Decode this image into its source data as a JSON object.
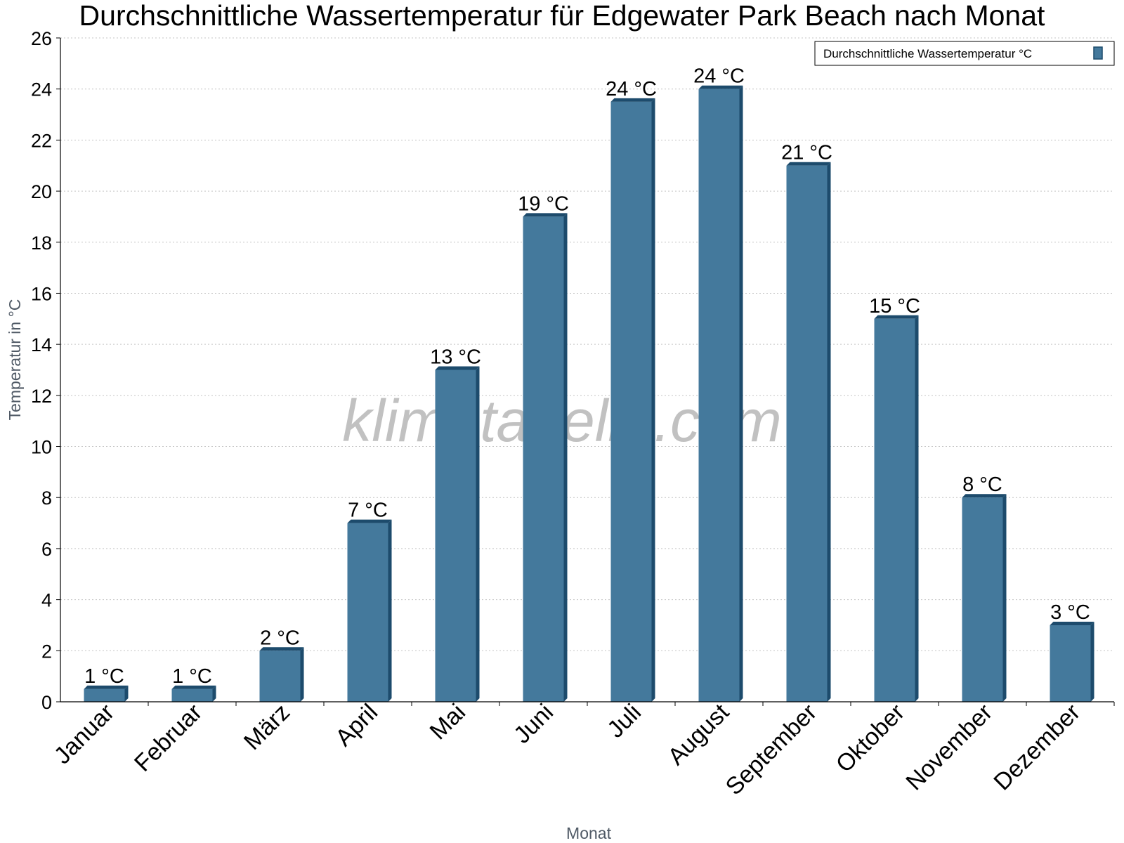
{
  "chart_data": {
    "type": "bar",
    "title": "Durchschnittliche Wassertemperatur für Edgewater Park Beach nach Monat",
    "xlabel": "Monat",
    "ylabel": "Temperatur in °C",
    "categories": [
      "Januar",
      "Februar",
      "März",
      "April",
      "Mai",
      "Juni",
      "Juli",
      "August",
      "September",
      "Oktober",
      "November",
      "Dezember"
    ],
    "series": [
      {
        "name": "Durchschnittliche Wassertemperatur °C",
        "values": [
          0.5,
          0.5,
          2,
          7,
          13,
          19,
          23.5,
          24,
          21,
          15,
          8,
          3
        ],
        "labels": [
          "1 °C",
          "1 °C",
          "2 °C",
          "7 °C",
          "13 °C",
          "19 °C",
          "24 °C",
          "24 °C",
          "21 °C",
          "15 °C",
          "8 °C",
          "3 °C"
        ]
      }
    ],
    "ylim": [
      0,
      26
    ],
    "yticks": [
      0,
      2,
      4,
      6,
      8,
      10,
      12,
      14,
      16,
      18,
      20,
      22,
      24,
      26
    ],
    "grid": true,
    "legend_position": "top-right",
    "bar_color": "#44799c",
    "bar_side_color": "#1d4b6c",
    "watermark": "klimatabelle.com"
  }
}
